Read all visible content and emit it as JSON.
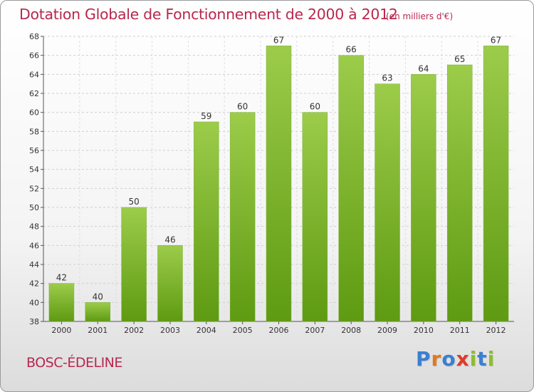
{
  "chart_data": {
    "type": "bar",
    "title": "Dotation Globale de Fonctionnement de 2000 à 2012",
    "subtitle": "(en milliers d'€)",
    "categories": [
      "2000",
      "2001",
      "2002",
      "2003",
      "2004",
      "2005",
      "2006",
      "2007",
      "2008",
      "2009",
      "2010",
      "2011",
      "2012"
    ],
    "values": [
      42,
      40,
      50,
      46,
      59,
      60,
      67,
      60,
      66,
      63,
      64,
      65,
      67
    ],
    "ylim": [
      38,
      68
    ],
    "yticks": [
      38,
      40,
      42,
      44,
      46,
      48,
      50,
      52,
      54,
      56,
      58,
      60,
      62,
      64,
      66,
      68
    ],
    "xlabel": "",
    "ylabel": "",
    "grid": true,
    "colors": {
      "bar_top": "#9ccc4a",
      "bar_bottom": "#5e9a12",
      "text": "#b8274f"
    }
  },
  "commune": "BOSC-ÉDELINE",
  "logo": {
    "text": "Proxiti",
    "letters": [
      {
        "ch": "P",
        "color": "#3a7fd1"
      },
      {
        "ch": "r",
        "color": "#e07a1c"
      },
      {
        "ch": "o",
        "color": "#3a7fd1"
      },
      {
        "ch": "x",
        "color": "#e03a2a"
      },
      {
        "ch": "i",
        "color": "#8cbf2a"
      },
      {
        "ch": "t",
        "color": "#3a7fd1"
      },
      {
        "ch": "i",
        "color": "#8cbf2a"
      }
    ]
  }
}
